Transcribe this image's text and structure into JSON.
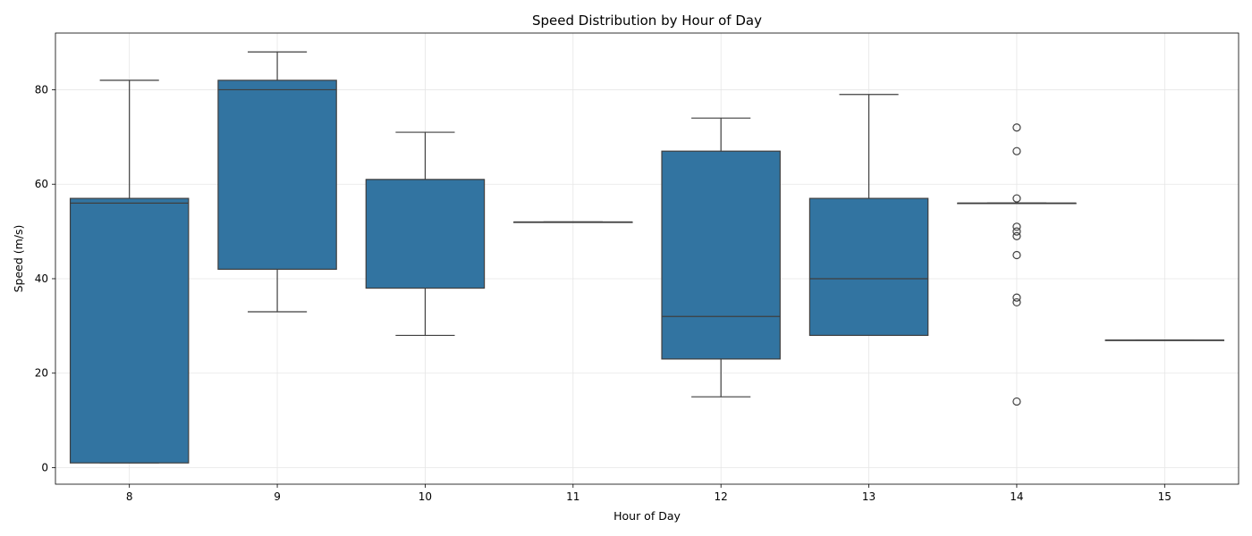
{
  "chart_data": {
    "type": "box",
    "title": "Speed Distribution by Hour of Day",
    "xlabel": "Hour of Day",
    "ylabel": "Speed (m/s)",
    "ylim": [
      -3.5,
      92
    ],
    "yticks": [
      0,
      20,
      40,
      60,
      80
    ],
    "grid": true,
    "box_color": "#3274a1",
    "line_color": "#3f3f3f",
    "categories": [
      "8",
      "9",
      "10",
      "11",
      "12",
      "13",
      "14",
      "15"
    ],
    "boxes": [
      {
        "category": "8",
        "whisker_low": 1,
        "q1": 1,
        "median": 56,
        "q3": 57,
        "whisker_high": 82,
        "outliers": []
      },
      {
        "category": "9",
        "whisker_low": 33,
        "q1": 42,
        "median": 80,
        "q3": 82,
        "whisker_high": 88,
        "outliers": []
      },
      {
        "category": "10",
        "whisker_low": 28,
        "q1": 38,
        "median": 61,
        "q3": 61,
        "whisker_high": 71,
        "outliers": []
      },
      {
        "category": "11",
        "whisker_low": 52,
        "q1": 52,
        "median": 52,
        "q3": 52,
        "whisker_high": 52,
        "outliers": []
      },
      {
        "category": "12",
        "whisker_low": 15,
        "q1": 23,
        "median": 32,
        "q3": 67,
        "whisker_high": 74,
        "outliers": []
      },
      {
        "category": "13",
        "whisker_low": 28,
        "q1": 28,
        "median": 40,
        "q3": 57,
        "whisker_high": 79,
        "outliers": []
      },
      {
        "category": "14",
        "whisker_low": 56,
        "q1": 56,
        "median": 56,
        "q3": 56,
        "whisker_high": 56,
        "outliers": [
          72,
          67,
          57,
          51,
          50,
          49,
          45,
          36,
          35,
          14
        ]
      },
      {
        "category": "15",
        "whisker_low": 27,
        "q1": 27,
        "median": 27,
        "q3": 27,
        "whisker_high": 27,
        "outliers": []
      }
    ]
  }
}
